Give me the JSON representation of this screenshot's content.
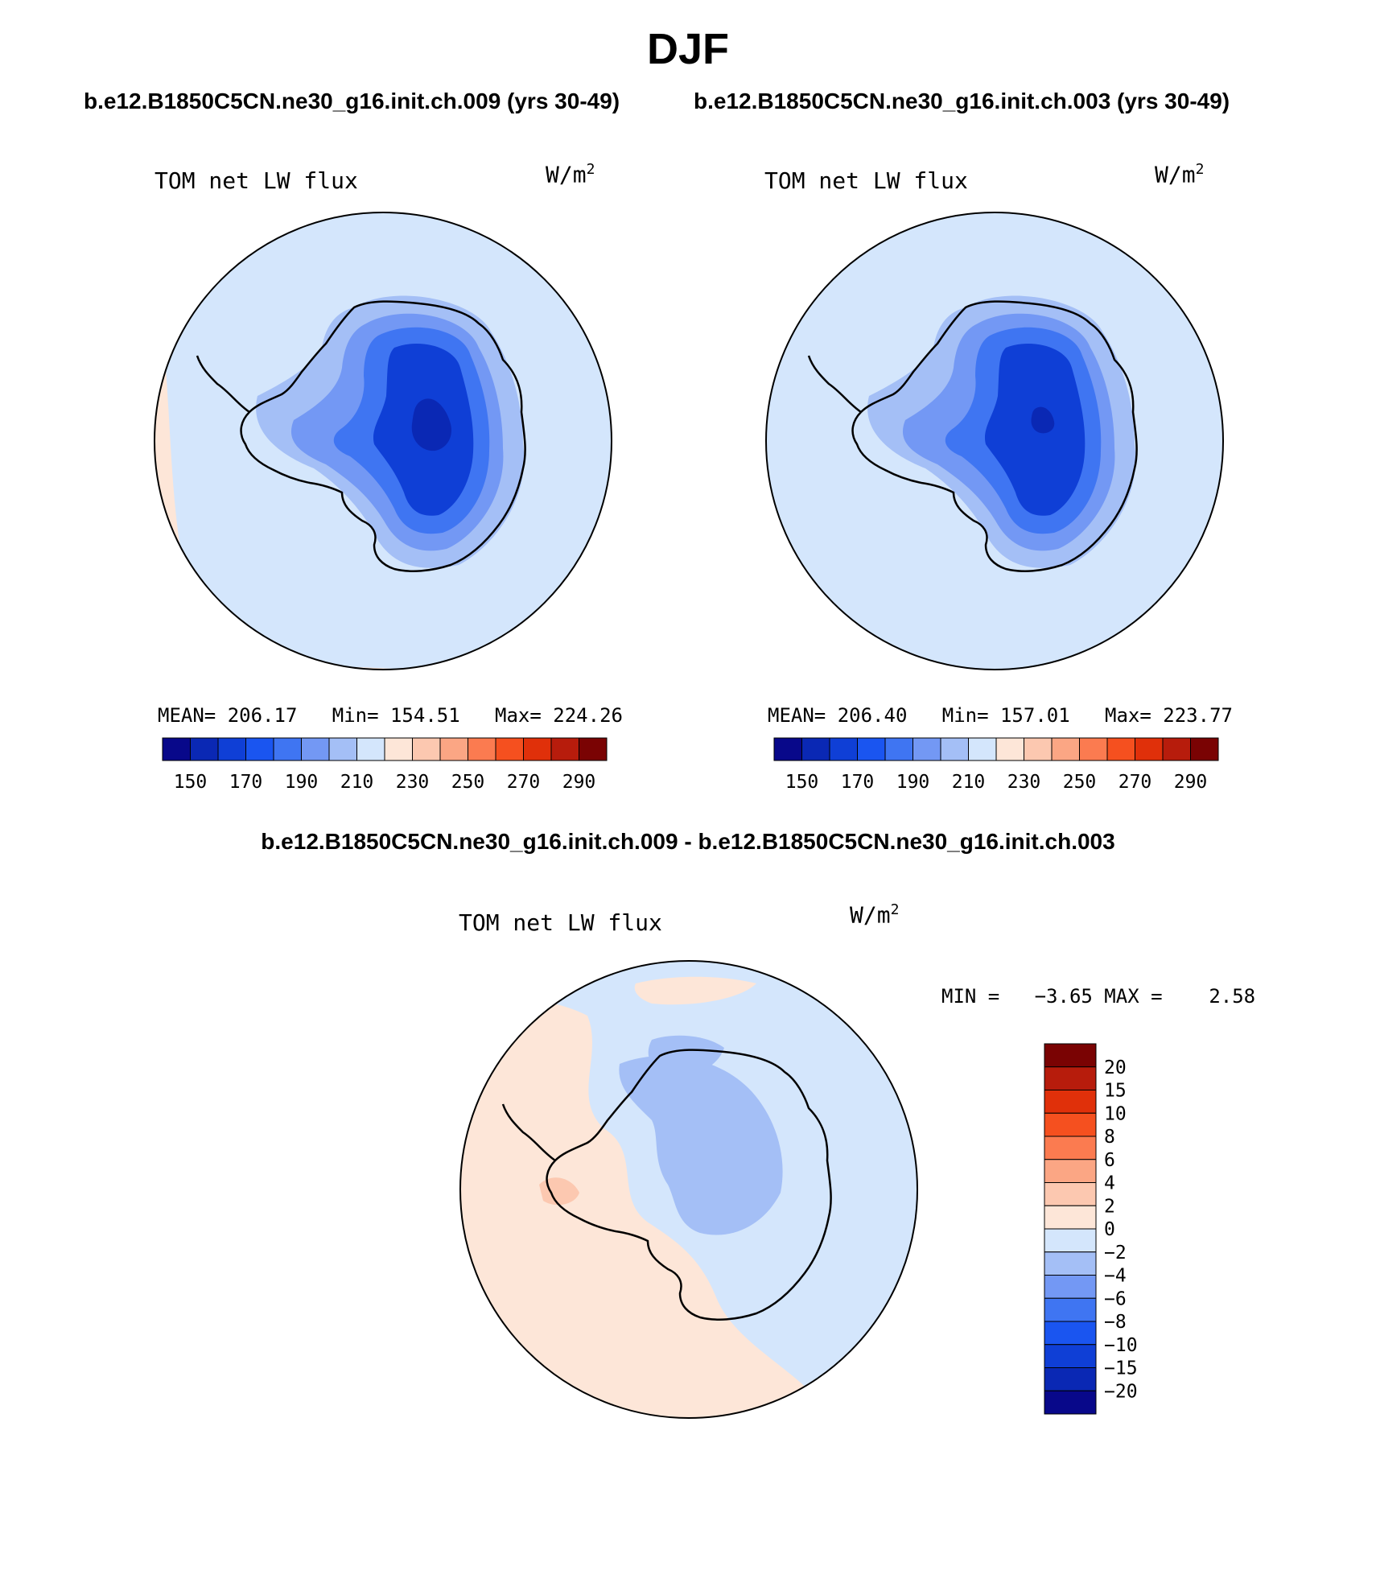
{
  "figure": {
    "title": "DJF",
    "subtitle_left": "b.e12.B1850C5CN.ne30_g16.init.ch.009 (yrs 30-49)",
    "subtitle_right": "b.e12.B1850C5CN.ne30_g16.init.ch.003 (yrs 30-49)",
    "difference_title": "b.e12.B1850C5CN.ne30_g16.init.ch.009 - b.e12.B1850C5CN.ne30_g16.init.ch.003"
  },
  "panels": [
    {
      "variable": "TOM net LW flux",
      "units": "W/m",
      "units_power": "2",
      "stats": "MEAN= 206.17   Min= 154.51   Max= 224.26",
      "colorbar_ticks": [
        "150",
        "170",
        "190",
        "210",
        "230",
        "250",
        "270",
        "290"
      ]
    },
    {
      "variable": "TOM net LW flux",
      "units": "W/m",
      "units_power": "2",
      "stats": "MEAN= 206.40   Min= 157.01   Max= 223.77",
      "colorbar_ticks": [
        "150",
        "170",
        "190",
        "210",
        "230",
        "250",
        "270",
        "290"
      ]
    },
    {
      "variable": "TOM net LW flux",
      "units": "W/m",
      "units_power": "2",
      "stats": "MIN =   −3.65 MAX =    2.58",
      "colorbar_ticks": [
        "20",
        "15",
        "10",
        "8",
        "6",
        "4",
        "2",
        "0",
        "−2",
        "−4",
        "−6",
        "−8",
        "−10",
        "−15",
        "−20"
      ]
    }
  ],
  "colors": {
    "abs_scale": [
      "#08088a",
      "#0a28b4",
      "#0f3fd6",
      "#1a55f0",
      "#3f75f2",
      "#7398f4",
      "#a4bff6",
      "#d4e6fc",
      "#fde6d8",
      "#fcc8b0",
      "#fba684",
      "#fb7b50",
      "#f5501f",
      "#e0300a",
      "#b71c0c",
      "#7a0303"
    ],
    "diff_scale": [
      "#08088a",
      "#0a28b4",
      "#0f3fd6",
      "#1a55f0",
      "#3f75f2",
      "#7398f4",
      "#a4bff6",
      "#d4e6fc",
      "#fde6d8",
      "#fcc8b0",
      "#fba684",
      "#fb7b50",
      "#f5501f",
      "#e0300a",
      "#b71c0c",
      "#7a0303"
    ]
  }
}
